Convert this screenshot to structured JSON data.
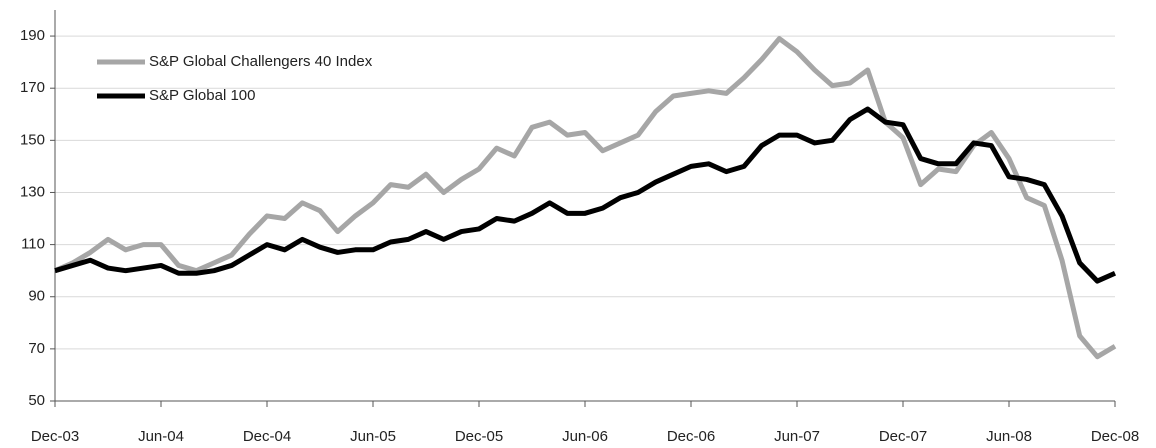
{
  "chart_data": {
    "type": "line",
    "categories": [
      "Dec-03",
      null,
      null,
      null,
      null,
      null,
      "Jun-04",
      null,
      null,
      null,
      null,
      null,
      "Dec-04",
      null,
      null,
      null,
      null,
      null,
      "Jun-05",
      null,
      null,
      null,
      null,
      null,
      "Dec-05",
      null,
      null,
      null,
      null,
      null,
      "Jun-06",
      null,
      null,
      null,
      null,
      null,
      "Dec-06",
      null,
      null,
      null,
      null,
      null,
      "Jun-07",
      null,
      null,
      null,
      null,
      null,
      "Dec-07",
      null,
      null,
      null,
      null,
      null,
      "Jun-08",
      null,
      null,
      null,
      null,
      null,
      "Dec-08"
    ],
    "series": [
      {
        "name": "S&P Global Challengers 40 Index",
        "color": "#a6a6a6",
        "values": [
          100,
          103,
          107,
          112,
          108,
          110,
          110,
          102,
          100,
          103,
          106,
          114,
          121,
          120,
          126,
          123,
          115,
          121,
          126,
          133,
          132,
          137,
          130,
          135,
          139,
          147,
          144,
          155,
          157,
          152,
          153,
          146,
          149,
          152,
          161,
          167,
          168,
          169,
          168,
          174,
          181,
          189,
          184,
          177,
          171,
          172,
          177,
          157,
          151,
          133,
          139,
          138,
          148,
          153,
          143,
          128,
          125,
          104,
          75,
          67,
          71
        ]
      },
      {
        "name": "S&P Global 100",
        "color": "#000000",
        "values": [
          100,
          102,
          104,
          101,
          100,
          101,
          102,
          99,
          99,
          100,
          102,
          106,
          110,
          108,
          112,
          109,
          107,
          108,
          108,
          111,
          112,
          115,
          112,
          115,
          116,
          120,
          119,
          122,
          126,
          122,
          122,
          124,
          128,
          130,
          134,
          137,
          140,
          141,
          138,
          140,
          148,
          152,
          152,
          149,
          150,
          158,
          162,
          157,
          156,
          143,
          141,
          141,
          149,
          148,
          136,
          135,
          133,
          121,
          103,
          96,
          99
        ]
      }
    ],
    "ylim": [
      50,
      200
    ],
    "yticks": [
      50,
      70,
      90,
      110,
      130,
      150,
      170,
      190
    ],
    "grid": true,
    "legend": "upper left"
  }
}
